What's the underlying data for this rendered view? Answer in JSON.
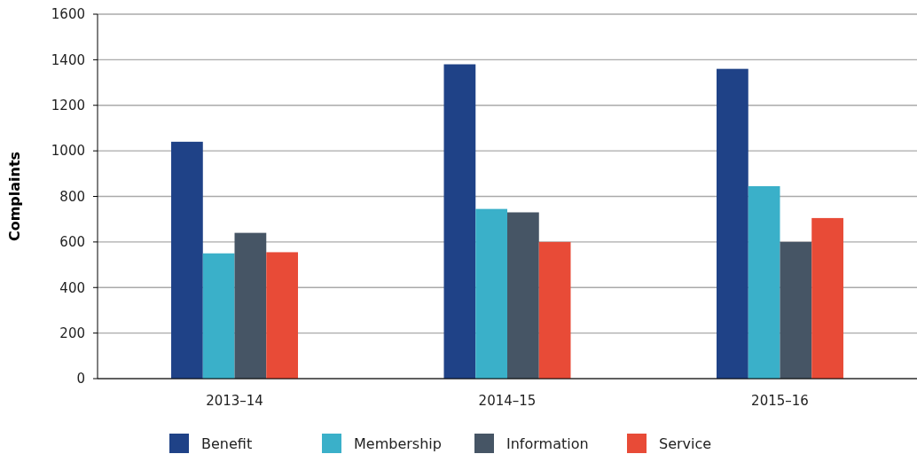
{
  "chart_data": {
    "type": "bar",
    "ylabel": "Complaints",
    "categories": [
      "2013–14",
      "2014–15",
      "2015–16"
    ],
    "series": [
      {
        "name": "Benefit",
        "color": "#1f4287",
        "values": [
          1040,
          1380,
          1360
        ]
      },
      {
        "name": "Membership",
        "color": "#3ab0c9",
        "values": [
          550,
          745,
          845
        ]
      },
      {
        "name": "Information",
        "color": "#465565",
        "values": [
          640,
          730,
          600
        ]
      },
      {
        "name": "Service",
        "color": "#e84b37",
        "values": [
          555,
          600,
          705
        ]
      }
    ],
    "ylim": [
      0,
      1600
    ],
    "yticks": [
      0,
      200,
      400,
      600,
      800,
      1000,
      1200,
      1400,
      1600
    ],
    "grid": "y",
    "legend": "bottom"
  }
}
